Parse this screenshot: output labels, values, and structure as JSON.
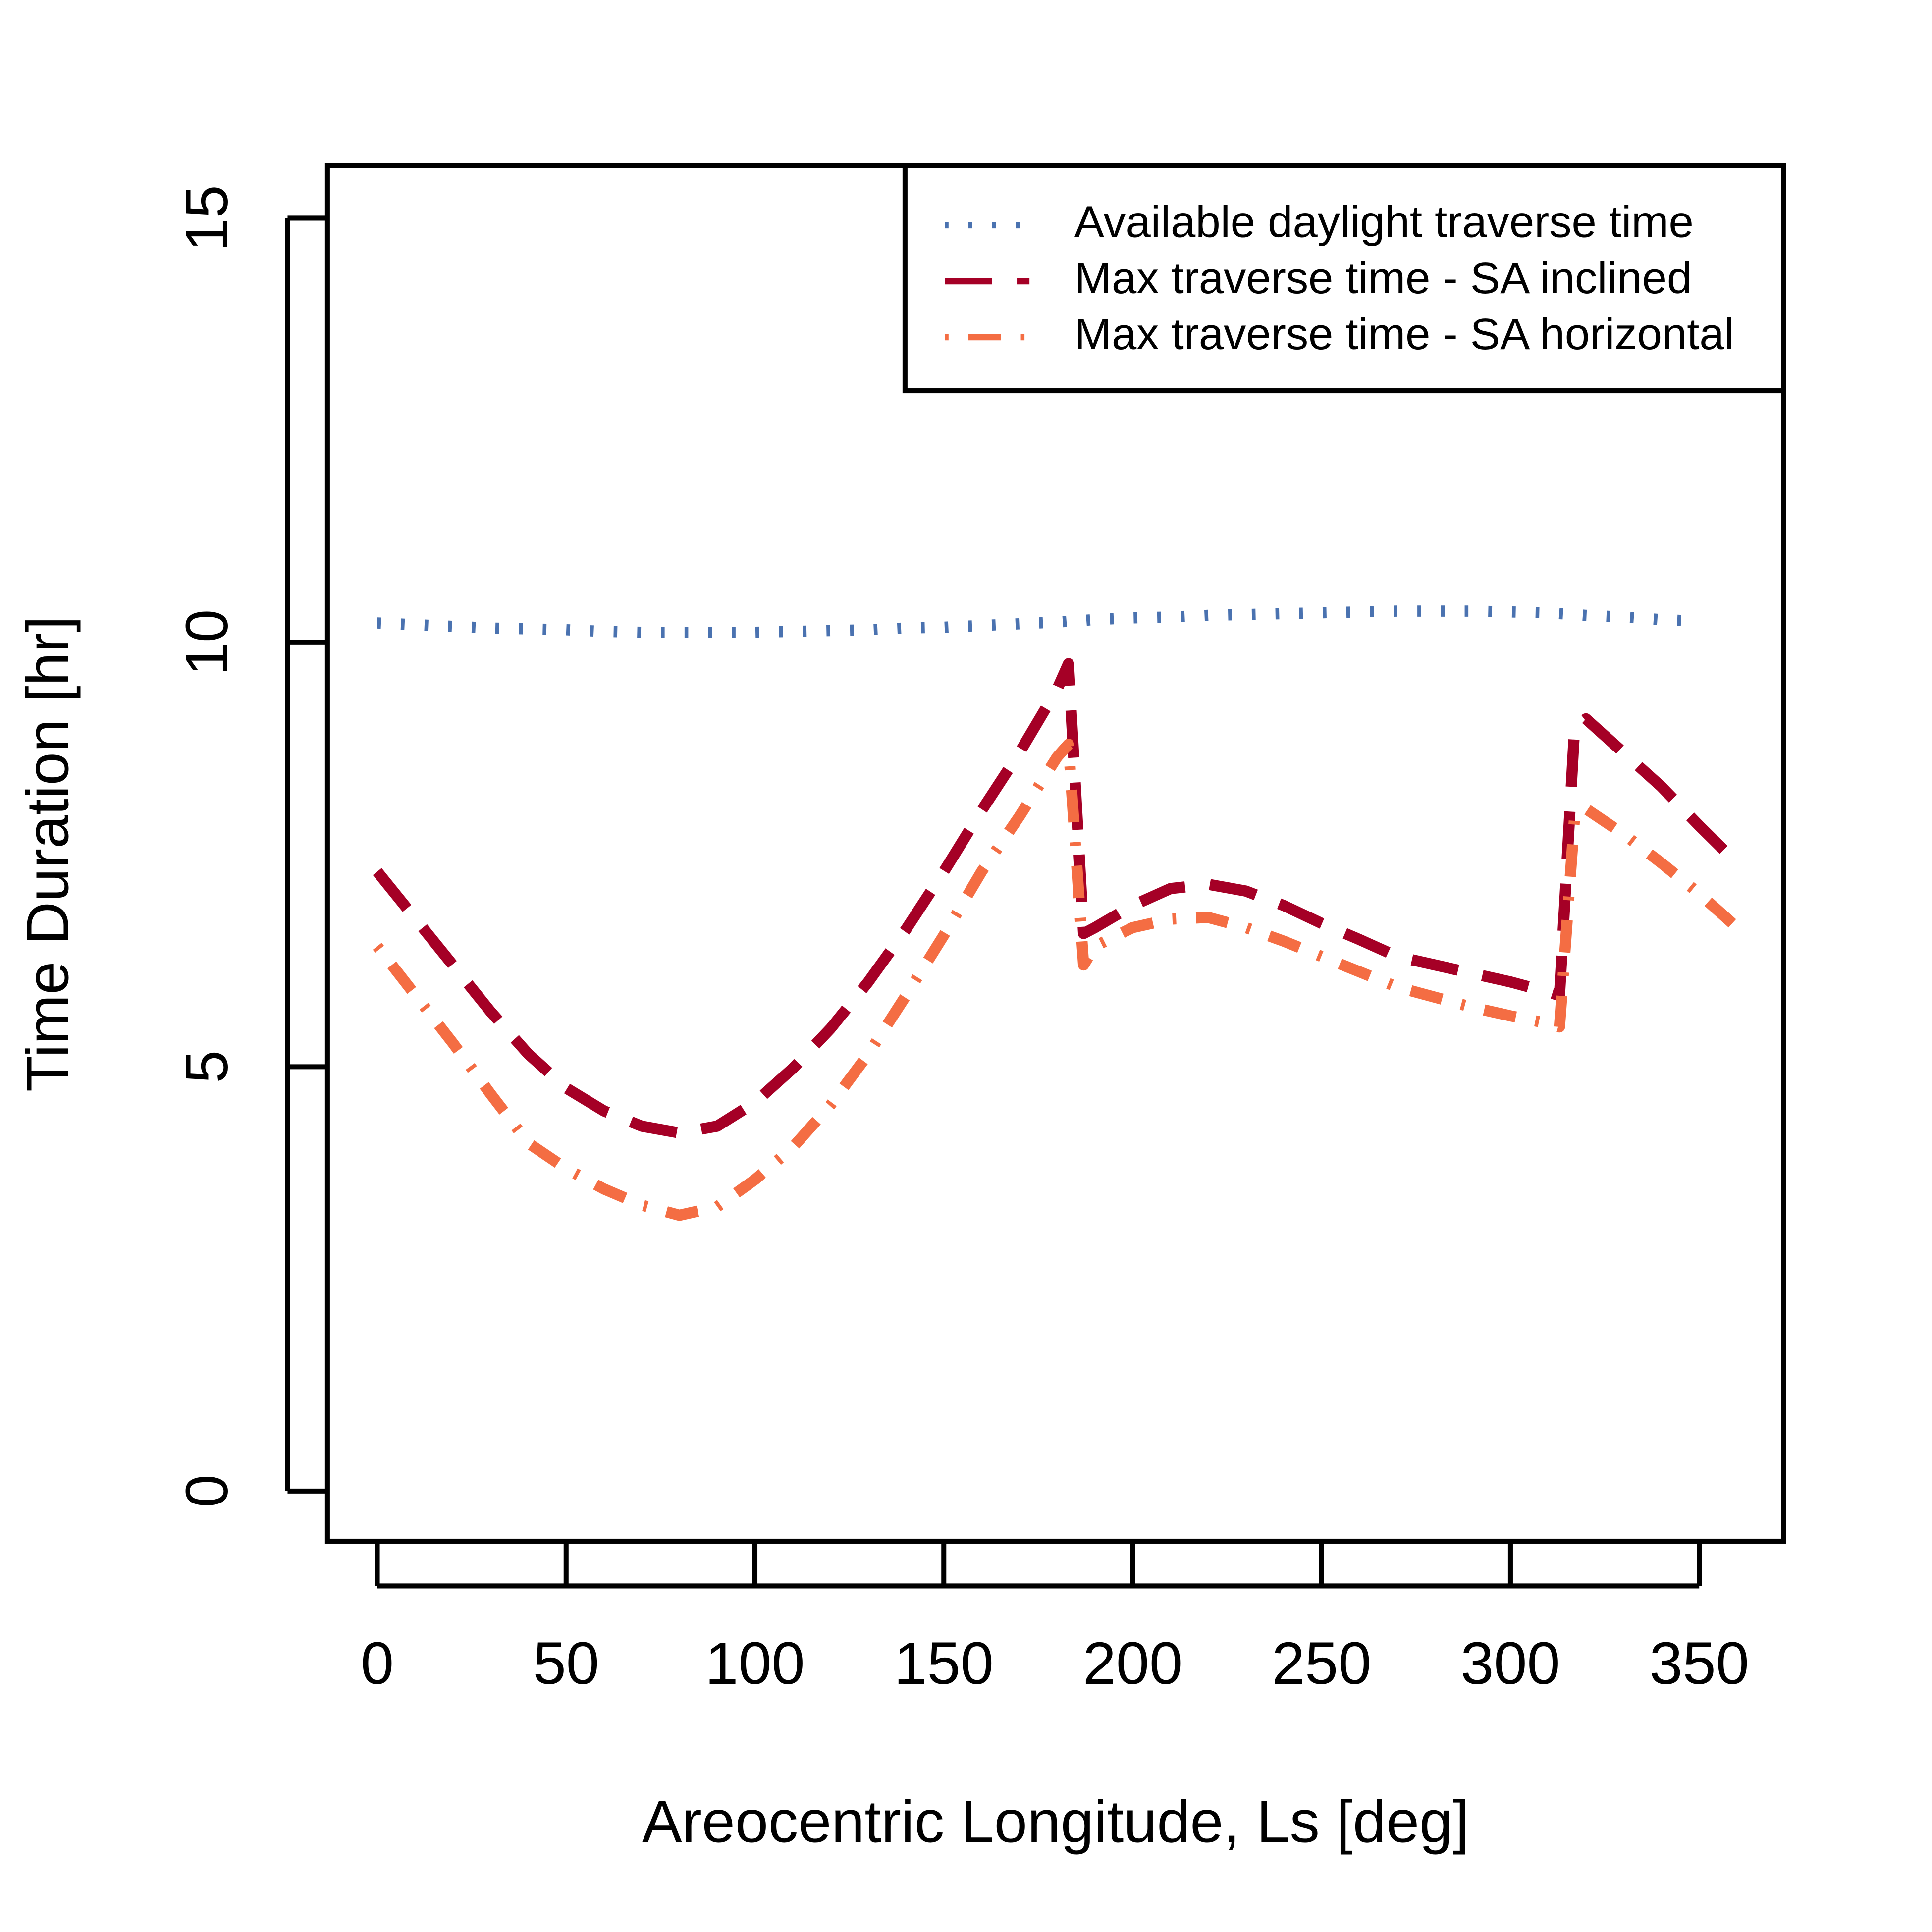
{
  "chart_data": {
    "type": "line",
    "x_label": "Areocentric Longitude, Ls [deg]",
    "y_label": "Time Duration [hr]",
    "x": [
      0,
      10,
      20,
      30,
      40,
      50,
      60,
      70,
      80,
      90,
      100,
      110,
      120,
      130,
      140,
      150,
      160,
      170,
      180,
      183,
      187,
      190,
      200,
      210,
      220,
      230,
      240,
      250,
      260,
      270,
      280,
      290,
      300,
      310,
      313,
      317,
      320,
      330,
      340,
      350,
      360
    ],
    "series": [
      {
        "name": "Available daylight traverse time",
        "color": "#4a72b0",
        "dash": "dotted",
        "values": [
          10.23,
          10.21,
          10.19,
          10.17,
          10.16,
          10.15,
          10.13,
          10.12,
          10.12,
          10.12,
          10.12,
          10.13,
          10.14,
          10.15,
          10.17,
          10.18,
          10.2,
          10.22,
          10.24,
          10.25,
          10.26,
          10.27,
          10.29,
          10.3,
          10.32,
          10.33,
          10.34,
          10.35,
          10.36,
          10.37,
          10.37,
          10.37,
          10.36,
          10.35,
          10.34,
          10.33,
          10.32,
          10.3,
          10.27,
          10.25,
          null
        ]
      },
      {
        "name": "Max traverse time - SA inclined",
        "color": "#a50026",
        "dash": "dashed",
        "values": [
          7.3,
          6.75,
          6.2,
          5.65,
          5.15,
          4.75,
          4.48,
          4.3,
          4.22,
          4.3,
          4.58,
          4.98,
          5.45,
          6.0,
          6.62,
          7.3,
          8.02,
          8.7,
          9.45,
          9.75,
          6.57,
          6.64,
          6.9,
          7.1,
          7.15,
          7.07,
          6.9,
          6.69,
          6.5,
          6.3,
          6.2,
          6.1,
          6.0,
          5.88,
          5.84,
          9.0,
          9.1,
          8.7,
          8.3,
          7.84,
          7.4
        ]
      },
      {
        "name": "Max traverse time - SA horizontal",
        "color": "#f46d43",
        "dash": "dotdash",
        "values": [
          6.42,
          5.85,
          5.28,
          4.68,
          4.1,
          3.8,
          3.56,
          3.37,
          3.25,
          3.35,
          3.67,
          4.05,
          4.55,
          5.15,
          5.84,
          6.55,
          7.3,
          7.95,
          8.65,
          8.8,
          6.2,
          6.42,
          6.64,
          6.74,
          6.76,
          6.64,
          6.48,
          6.3,
          6.12,
          5.94,
          5.82,
          5.7,
          5.6,
          5.51,
          5.47,
          7.95,
          8.04,
          7.74,
          7.4,
          7.04,
          6.64
        ]
      }
    ],
    "xlim": [
      -13.2,
      372.4
    ],
    "ylim": [
      -0.59,
      15.62
    ],
    "xticks": [
      0,
      50,
      100,
      150,
      200,
      250,
      300,
      350
    ],
    "yticks": [
      0,
      5,
      10,
      15
    ],
    "legend": "top-right"
  }
}
